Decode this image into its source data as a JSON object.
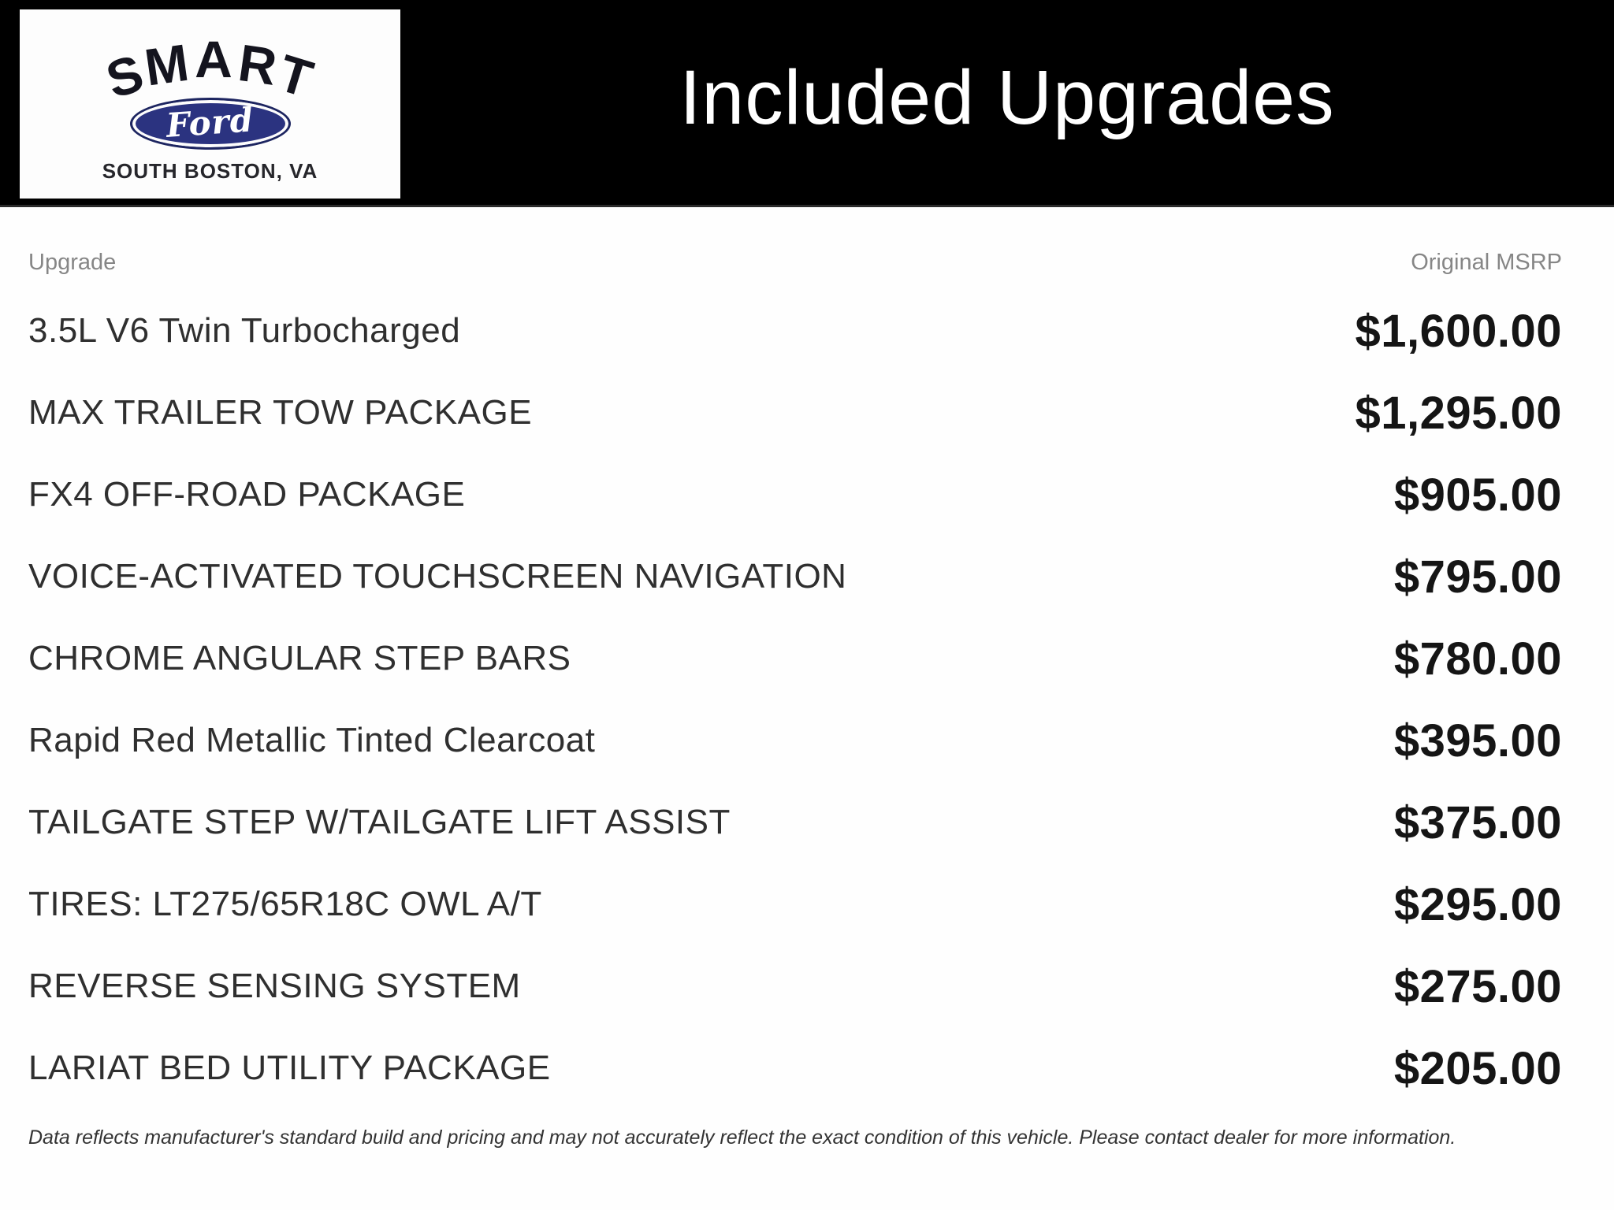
{
  "header": {
    "title": "Included Upgrades"
  },
  "logo": {
    "dealer_name": "SMART",
    "brand": "Ford",
    "city": "SOUTH BOSTON, VA"
  },
  "table": {
    "columns": {
      "upgrade": "Upgrade",
      "msrp": "Original MSRP"
    },
    "rows": [
      {
        "name": "3.5L V6 Twin Turbocharged",
        "price": "$1,600.00"
      },
      {
        "name": "MAX TRAILER TOW PACKAGE",
        "price": "$1,295.00"
      },
      {
        "name": "FX4 OFF-ROAD PACKAGE",
        "price": "$905.00"
      },
      {
        "name": "VOICE-ACTIVATED TOUCHSCREEN NAVIGATION",
        "price": "$795.00"
      },
      {
        "name": "CHROME ANGULAR STEP BARS",
        "price": "$780.00"
      },
      {
        "name": "Rapid Red Metallic Tinted Clearcoat",
        "price": "$395.00"
      },
      {
        "name": "TAILGATE STEP W/TAILGATE LIFT ASSIST",
        "price": "$375.00"
      },
      {
        "name": "TIRES: LT275/65R18C OWL A/T",
        "price": "$295.00"
      },
      {
        "name": "REVERSE SENSING SYSTEM",
        "price": "$275.00"
      },
      {
        "name": "LARIAT BED UTILITY PACKAGE",
        "price": "$205.00"
      }
    ]
  },
  "footer": {
    "disclaimer": "Data reflects manufacturer's standard build and pricing and may not accurately reflect the exact condition of this vehicle. Please contact dealer for more information."
  },
  "colors": {
    "header_bg": "#000000",
    "ford_blue": "#2b3380",
    "ford_blue_dark": "#1d2560",
    "title_text": "#ffffff",
    "column_header_text": "#868686",
    "item_text": "#2f2f2f",
    "price_text": "#151515",
    "footer_text": "#333333"
  }
}
